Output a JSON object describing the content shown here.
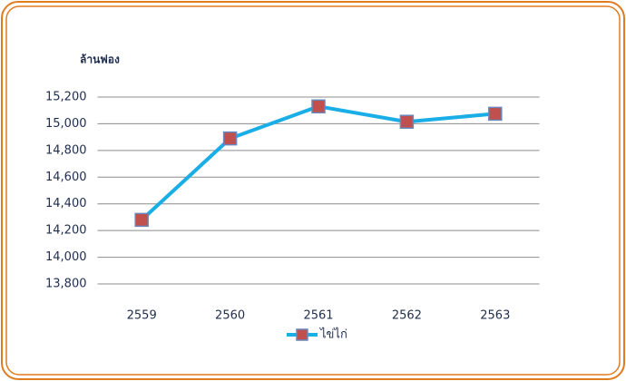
{
  "chart_data": {
    "type": "line",
    "y_axis_label": "ล้านฟอง",
    "categories": [
      "2559",
      "2560",
      "2561",
      "2562",
      "2563"
    ],
    "series": [
      {
        "name": "ไข่ไก่",
        "color": "#1aaee6",
        "marker_color": "#c0504d",
        "values": [
          14280,
          14890,
          15130,
          15015,
          15075
        ]
      }
    ],
    "ylim": [
      13800,
      15200
    ],
    "yticks": [
      {
        "value": 13800,
        "label": "13,800"
      },
      {
        "value": 14000,
        "label": "14,000"
      },
      {
        "value": 14200,
        "label": "14,200"
      },
      {
        "value": 14400,
        "label": "14,400"
      },
      {
        "value": 14600,
        "label": "14,600"
      },
      {
        "value": 14800,
        "label": "14,800"
      },
      {
        "value": 15000,
        "label": "15,000"
      },
      {
        "value": 15200,
        "label": "15,200"
      }
    ],
    "grid": true,
    "legend": "bottom"
  }
}
